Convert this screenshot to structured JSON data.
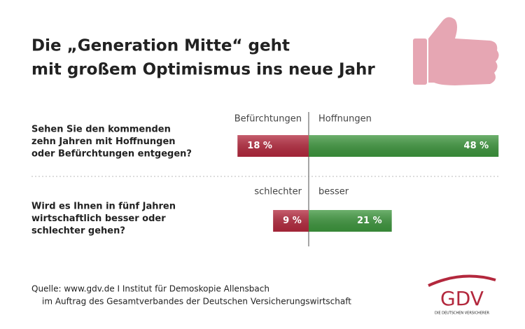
{
  "chart_data": {
    "type": "diverging_bar",
    "title": [
      "Die „Generation Mitte“ geht",
      "mit großem Optimismus ins neue Jahr"
    ],
    "rows": [
      {
        "question": [
          "Sehen Sie den kommenden",
          "zehn Jahren mit Hoffnungen",
          "oder Befürchtungen entgegen?"
        ],
        "left": {
          "name": "Befürchtungen",
          "value": 18,
          "value_label": "18 %",
          "color": "#b3283d"
        },
        "right": {
          "name": "Hoffnungen",
          "value": 48,
          "value_label": "48 %",
          "color": "#3d963d"
        }
      },
      {
        "question": [
          "Wird es Ihnen in fünf Jahren",
          "wirtschaftlich besser oder",
          "schlechter gehen?"
        ],
        "left": {
          "name": "schlechter",
          "value": 9,
          "value_label": "9 %",
          "color": "#b3283d"
        },
        "right": {
          "name": "besser",
          "value": 21,
          "value_label": "21 %",
          "color": "#3d963d"
        }
      }
    ],
    "source": [
      "Quelle: www.gdv.de I Institut für Demoskopie Allensbach",
      "im Auftrag des Gesamtverbandes der Deutschen Versicherungswirtschaft"
    ],
    "logo": {
      "name": "GDV",
      "tagline": "DIE DEUTSCHEN VERSICHERER"
    }
  }
}
